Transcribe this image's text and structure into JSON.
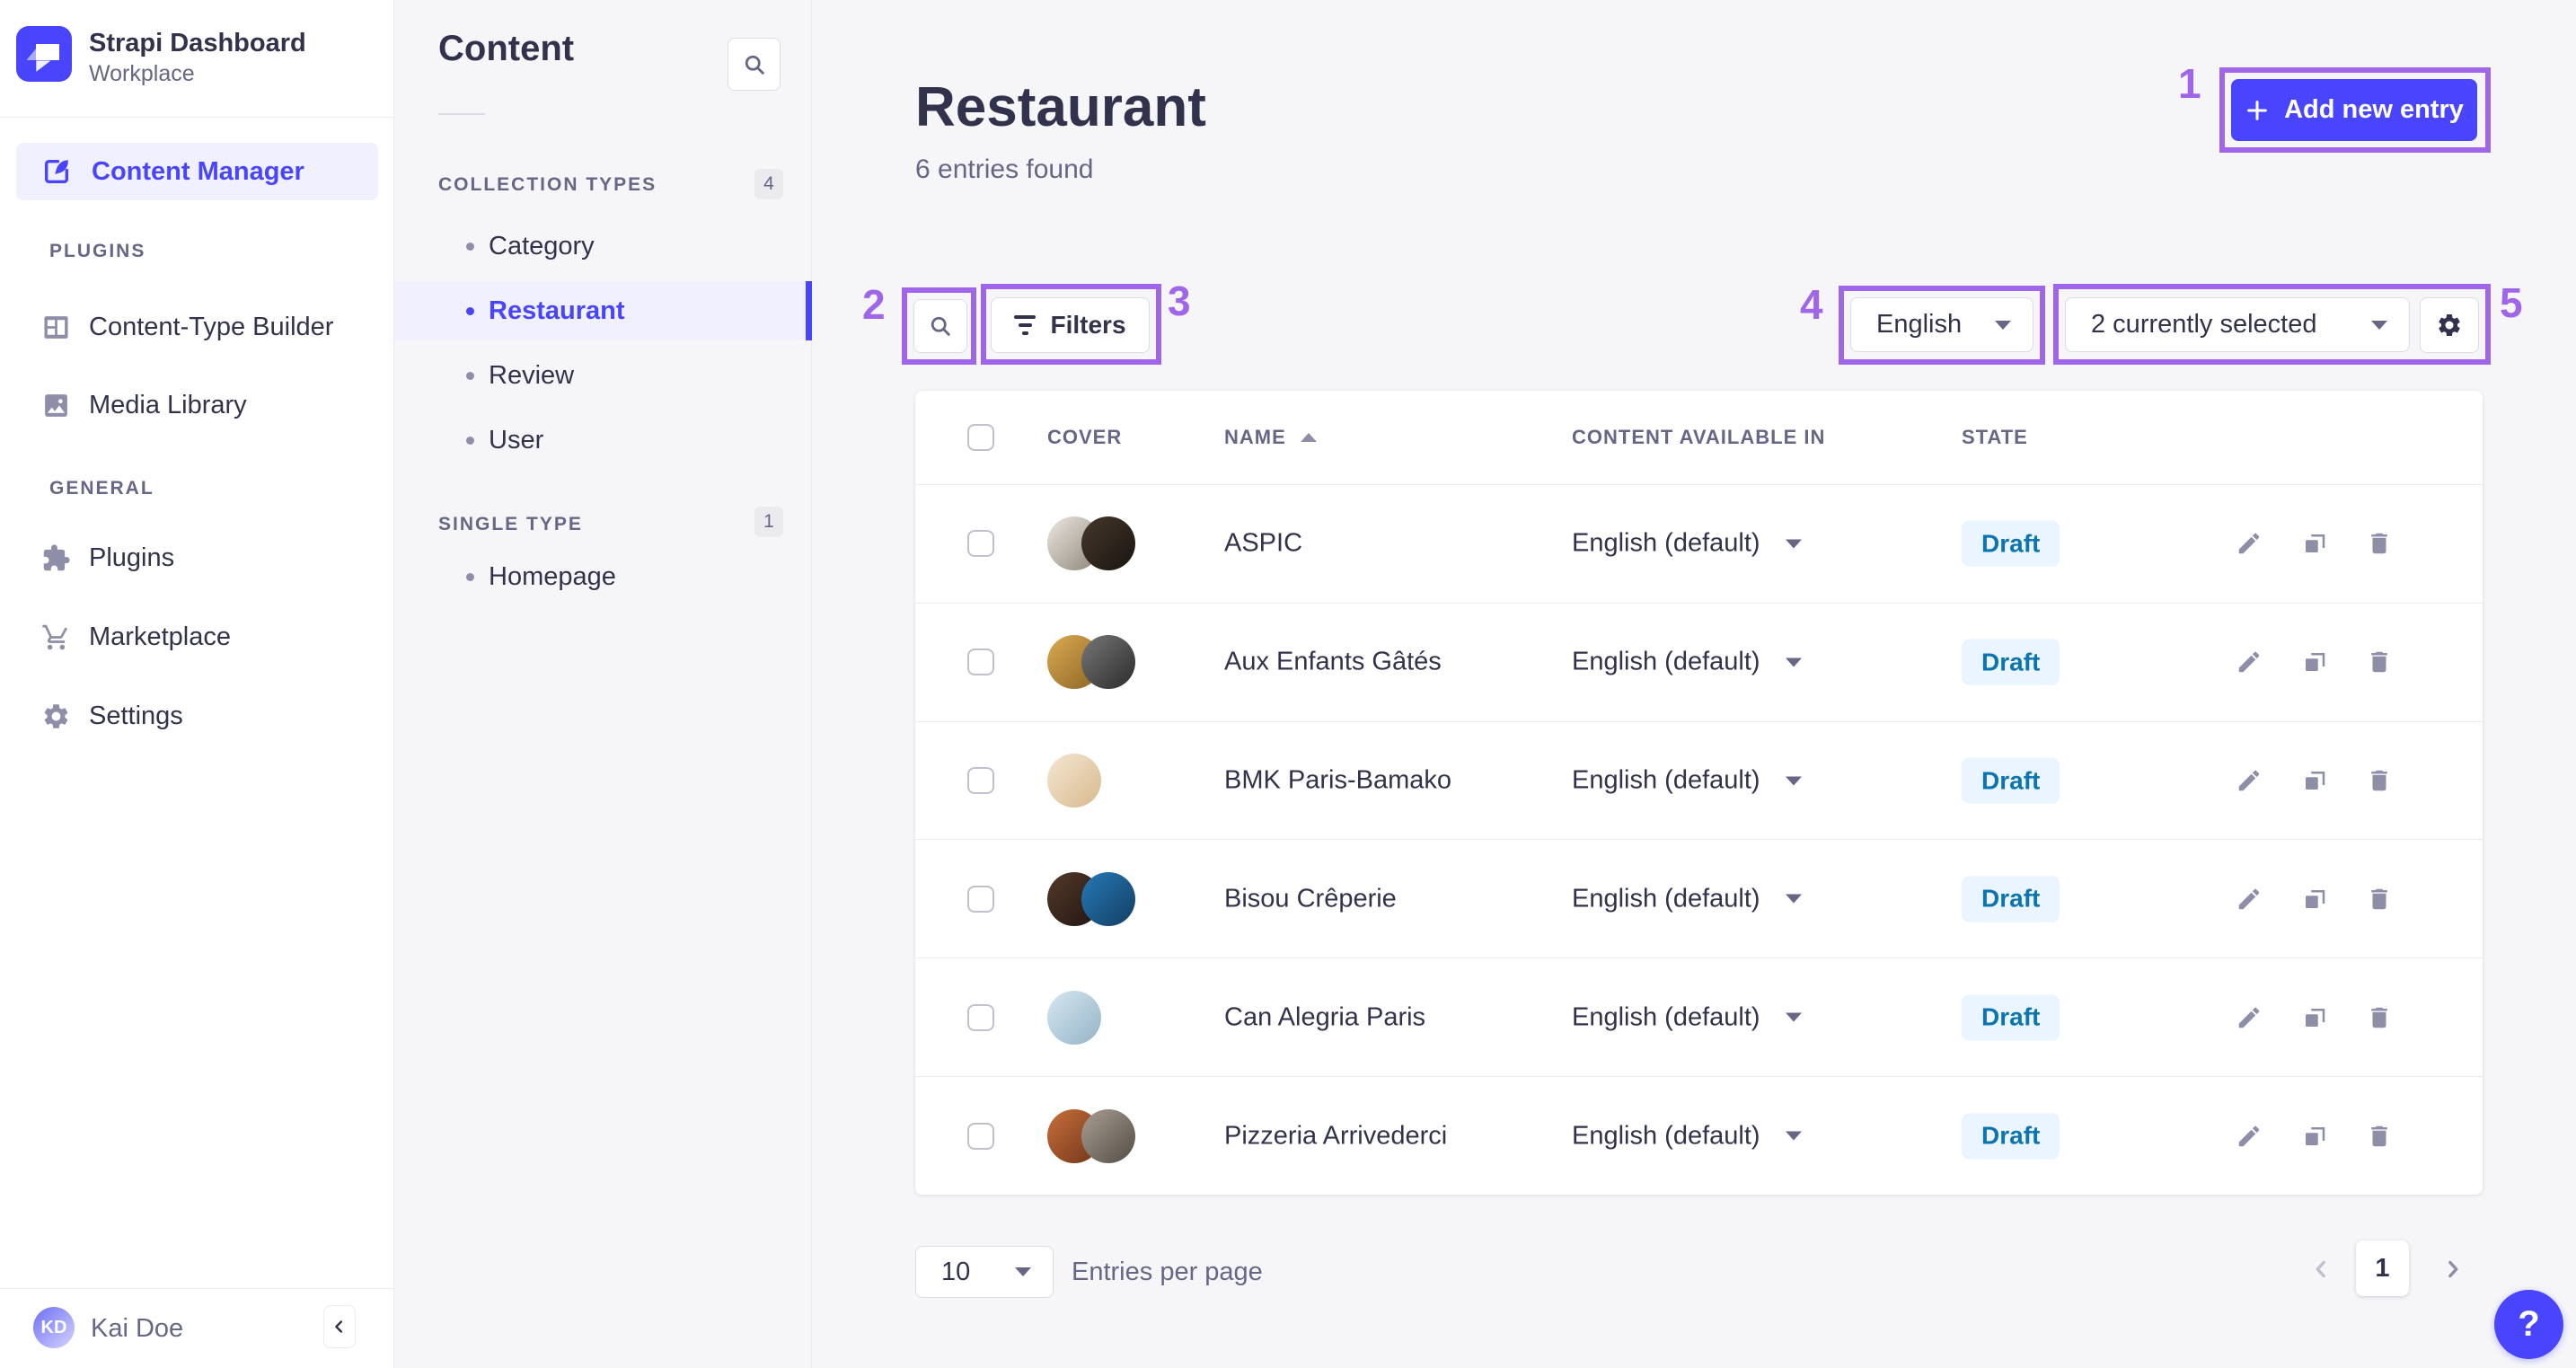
{
  "brand": {
    "title": "Strapi Dashboard",
    "subtitle": "Workplace"
  },
  "nav": {
    "content_manager": "Content Manager",
    "sections": [
      {
        "label": "PLUGINS",
        "items": [
          "Content-Type Builder",
          "Media Library"
        ]
      },
      {
        "label": "GENERAL",
        "items": [
          "Plugins",
          "Marketplace",
          "Settings"
        ]
      }
    ],
    "user": {
      "initials": "KD",
      "name": "Kai Doe"
    }
  },
  "subnav": {
    "title": "Content",
    "groups": [
      {
        "label": "COLLECTION TYPES",
        "count": "4",
        "items": [
          "Category",
          "Restaurant",
          "Review",
          "User"
        ],
        "active": "Restaurant"
      },
      {
        "label": "SINGLE TYPE",
        "count": "1",
        "items": [
          "Homepage"
        ]
      }
    ]
  },
  "page": {
    "title": "Restaurant",
    "subtitle": "6 entries found",
    "add_button_label": "Add new entry"
  },
  "toolbar": {
    "filters_label": "Filters",
    "locale_value": "English",
    "selected_value": "2 currently selected"
  },
  "table": {
    "columns": [
      "COVER",
      "NAME",
      "CONTENT AVAILABLE IN",
      "STATE"
    ],
    "sorted_by": "NAME",
    "sort_direction": "ascending",
    "rows": [
      {
        "name": "ASPIC",
        "available_in": "English (default)",
        "state": "Draft",
        "avatars": [
          "linear-gradient(135deg,#ece8e1,#8d8478)",
          "linear-gradient(135deg,#46382c,#191410)"
        ]
      },
      {
        "name": "Aux Enfants Gâtés",
        "available_in": "English (default)",
        "state": "Draft",
        "avatars": [
          "linear-gradient(135deg,#dcaa52,#8a6524)",
          "linear-gradient(135deg,#777777,#2b2b2b)"
        ]
      },
      {
        "name": "BMK Paris-Bamako",
        "available_in": "English (default)",
        "state": "Draft",
        "avatars": [
          "linear-gradient(135deg,#f4e7d3,#d8b98c)"
        ]
      },
      {
        "name": "Bisou Crêperie",
        "available_in": "English (default)",
        "state": "Draft",
        "avatars": [
          "linear-gradient(135deg,#54392a,#211511)",
          "linear-gradient(135deg,#2779b8,#123e62)"
        ]
      },
      {
        "name": "Can Alegria Paris",
        "available_in": "English (default)",
        "state": "Draft",
        "avatars": [
          "linear-gradient(135deg,#d7e8f2,#94b3c6)"
        ]
      },
      {
        "name": "Pizzeria Arrivederci",
        "available_in": "English (default)",
        "state": "Draft",
        "avatars": [
          "linear-gradient(135deg,#c96f3c,#6f3518)",
          "linear-gradient(135deg,#a99e93,#544d45)"
        ]
      }
    ]
  },
  "pagination": {
    "page_size": "10",
    "label": "Entries per page",
    "current_page": "1"
  },
  "help": {
    "label": "?"
  },
  "annotations": {
    "labels": [
      "1",
      "2",
      "3",
      "4",
      "5"
    ],
    "color": "#a066e9"
  },
  "colors": {
    "primary": "#4945ff",
    "primary_bg": "#f0f0ff",
    "text": "#32324d",
    "text_secondary": "#666687",
    "icon": "#8e8ea9",
    "border": "#eaeaef",
    "button_border": "#dcdce4",
    "app_bg": "#f6f6f9",
    "draft_bg": "#eaf5ff",
    "draft_text": "#0c75af"
  }
}
